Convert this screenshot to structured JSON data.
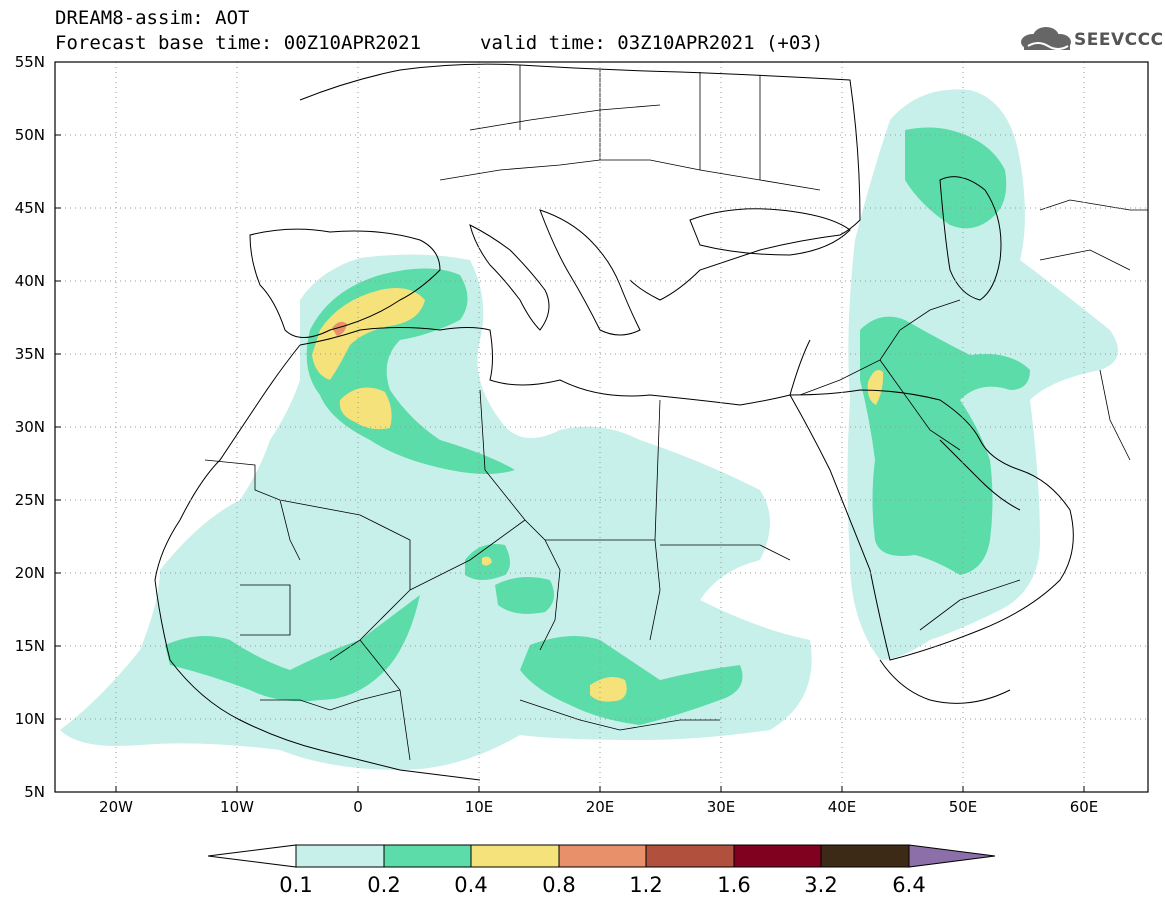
{
  "header": {
    "title": "DREAM8-assim: AOT",
    "forecast_base": "Forecast base time: 00Z10APR2021",
    "valid_time": "valid time: 03Z10APR2021 (+03)",
    "logo_text": "SEEVCCC"
  },
  "map": {
    "lon_range": [
      -25,
      65
    ],
    "lat_range": [
      5,
      55
    ],
    "lat_ticks": [
      "5N",
      "10N",
      "15N",
      "20N",
      "25N",
      "30N",
      "35N",
      "40N",
      "45N",
      "50N",
      "55N"
    ],
    "lon_ticks": [
      "20W",
      "10W",
      "0",
      "10E",
      "20E",
      "30E",
      "40E",
      "50E",
      "60E"
    ],
    "grid": "dotted"
  },
  "colorbar": {
    "levels": [
      "0.1",
      "0.2",
      "0.4",
      "0.8",
      "1.2",
      "1.6",
      "3.2",
      "6.4"
    ],
    "colors": [
      "#ffffff",
      "#c7f0ea",
      "#5cdca8",
      "#f5e27a",
      "#e8906a",
      "#b0503d",
      "#800020",
      "#3c2a17",
      "#8c6ea8"
    ]
  }
}
